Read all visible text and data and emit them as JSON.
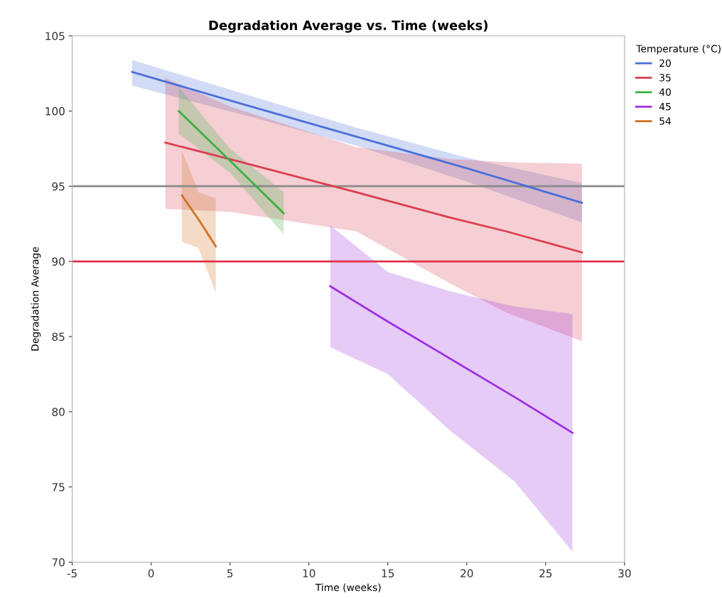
{
  "chart_data": {
    "type": "line",
    "title": "Degradation Average vs. Time (weeks)",
    "xlabel": "Time (weeks)",
    "ylabel": "Degradation Average",
    "legend_title": "Temperature (°C)",
    "legend": "right",
    "xlim": [
      -5,
      30
    ],
    "xticks": [
      -5,
      0,
      5,
      10,
      15,
      20,
      25,
      30
    ],
    "ylim": [
      70,
      105
    ],
    "yticks": [
      70,
      75,
      80,
      85,
      90,
      95,
      100,
      105
    ],
    "grid": false,
    "marker": "none",
    "line_style": "solid",
    "series": [
      {
        "name": "20",
        "color": "#4a6fd8",
        "x": [
          -1.2,
          6,
          13,
          20,
          27.3
        ],
        "values": [
          102.6,
          100.4,
          98.3,
          96.2,
          93.9
        ],
        "lower": [
          101.7,
          99.7,
          97.7,
          95.3,
          92.6
        ],
        "upper": [
          103.4,
          101.1,
          98.9,
          96.9,
          95.2
        ]
      },
      {
        "name": "35",
        "color": "#d9404f",
        "x": [
          0.9,
          5,
          13,
          19,
          22.5,
          27.3
        ],
        "values": [
          97.9,
          96.8,
          94.6,
          92.9,
          92.0,
          90.6
        ],
        "lower": [
          93.5,
          93.3,
          92.0,
          88.5,
          86.6,
          84.7
        ],
        "upper": [
          102.2,
          100.3,
          97.6,
          96.8,
          96.6,
          96.5
        ]
      },
      {
        "name": "40",
        "color": "#3bb043",
        "x": [
          1.75,
          5,
          8.4
        ],
        "values": [
          100.0,
          96.7,
          93.2
        ],
        "lower": [
          98.5,
          95.9,
          91.8
        ],
        "upper": [
          101.6,
          97.5,
          94.6
        ]
      },
      {
        "name": "45",
        "color": "#9b30e0",
        "x": [
          11.35,
          15,
          19,
          23,
          26.7
        ],
        "values": [
          88.35,
          86.0,
          83.5,
          81.0,
          78.6
        ],
        "lower": [
          84.3,
          82.5,
          78.7,
          75.4,
          70.7
        ],
        "upper": [
          92.4,
          89.3,
          88.0,
          87.0,
          86.5
        ]
      },
      {
        "name": "54",
        "color": "#d07020",
        "x": [
          1.95,
          3,
          4.1
        ],
        "values": [
          94.4,
          92.8,
          91.0
        ],
        "lower": [
          91.3,
          90.9,
          87.9
        ],
        "upper": [
          97.4,
          94.6,
          94.2
        ]
      }
    ],
    "ref_lines": [
      {
        "axis": "y",
        "value": 95,
        "color": "#8a8a8a",
        "line_style": "solid"
      },
      {
        "axis": "y",
        "value": 90,
        "color": "#e0304a",
        "line_style": "solid"
      }
    ]
  }
}
